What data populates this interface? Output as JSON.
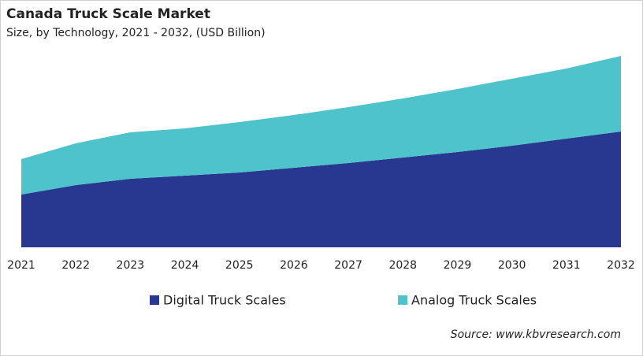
{
  "chart_data": {
    "type": "stacked-area",
    "title": "Canada Truck Scale Market",
    "subtitle": "Size, by Technology, 2021 - 2032, (USD Billion)",
    "categories": [
      "2021",
      "2022",
      "2023",
      "2024",
      "2025",
      "2026",
      "2027",
      "2028",
      "2029",
      "2030",
      "2031",
      "2032"
    ],
    "series": [
      {
        "name": "Digital Truck Scales",
        "color": "#283891",
        "values": [
          0.67,
          0.79,
          0.87,
          0.91,
          0.95,
          1.01,
          1.07,
          1.14,
          1.21,
          1.29,
          1.38,
          1.47
        ]
      },
      {
        "name": "Analog Truck Scales",
        "color": "#4fc3cc",
        "values": [
          0.45,
          0.53,
          0.59,
          0.6,
          0.64,
          0.67,
          0.71,
          0.75,
          0.8,
          0.85,
          0.89,
          0.96
        ]
      }
    ],
    "ylim": [
      0,
      2.5
    ],
    "source": "Source: www.kbvresearch.com"
  }
}
